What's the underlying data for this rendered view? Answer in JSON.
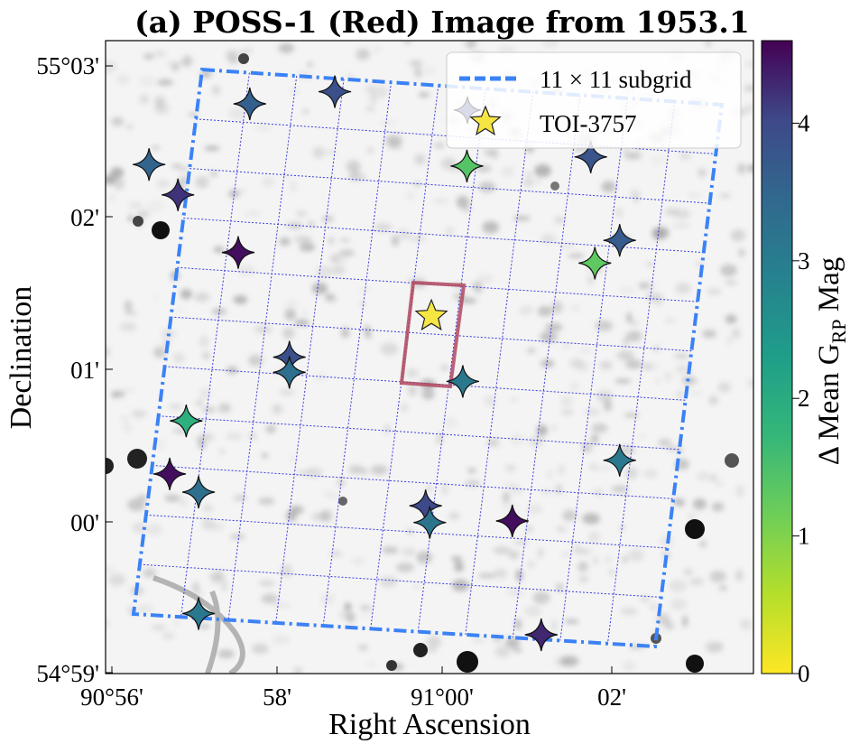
{
  "chart_data": {
    "type": "scatter",
    "title": "(a) POSS-1 (Red) Image from 1953.1",
    "xlabel": "Right Ascension",
    "ylabel": "Declination",
    "x_ticks": [
      "90°56'",
      "58'",
      "91°00'",
      "02'"
    ],
    "y_ticks": [
      "55°03'",
      "02'",
      "01'",
      "00'",
      "54°59'"
    ],
    "background": "grayscale sky image (POSS-1 red plate)",
    "grid": "11 × 11 rotated subgrid, dotted blue lines",
    "legend": {
      "position": "top-right",
      "entries": [
        {
          "label": "11 × 11 subgrid",
          "style": "dashed-line",
          "color": "#3b82f6"
        },
        {
          "label": "TOI-3757",
          "style": "star-marker",
          "color": "#f5e642"
        }
      ]
    },
    "highlight_box": {
      "color": "#b0485f",
      "description": "Gaia DR3 target region around TOI-3757"
    },
    "colorbar": {
      "label_main": "Δ Mean G",
      "label_sub": "RP",
      "label_suffix": " Mag",
      "range": [
        0,
        4.6
      ],
      "ticks": [
        "0",
        "1",
        "2",
        "3",
        "4"
      ],
      "colormap": "viridis (reversed)"
    },
    "target": {
      "name": "TOI-3757",
      "ra_arcmin": 59.87,
      "dec_arcmin": 1.35
    },
    "units": {
      "x": "arcmin offset from 90°56' RA (display)",
      "y": "arcmin offset from 54°59' Dec"
    },
    "points": [
      {
        "ra": 57.67,
        "dec": 2.75,
        "dmag": 3.6
      },
      {
        "ra": 56.45,
        "dec": 2.35,
        "dmag": 3.5
      },
      {
        "ra": 56.8,
        "dec": 2.15,
        "dmag": 4.2
      },
      {
        "ra": 57.53,
        "dec": 1.77,
        "dmag": 4.5
      },
      {
        "ra": 58.7,
        "dec": 2.83,
        "dmag": 3.9
      },
      {
        "ra": 60.3,
        "dec": 2.34,
        "dmag": 1.4
      },
      {
        "ra": 61.8,
        "dec": 2.4,
        "dmag": 3.8
      },
      {
        "ra": 62.15,
        "dec": 1.85,
        "dmag": 3.7
      },
      {
        "ra": 61.85,
        "dec": 1.7,
        "dmag": 1.3
      },
      {
        "ra": 58.15,
        "dec": 1.08,
        "dmag": 3.9
      },
      {
        "ra": 58.15,
        "dec": 0.98,
        "dmag": 3.3
      },
      {
        "ra": 60.25,
        "dec": 0.92,
        "dmag": 3.1
      },
      {
        "ra": 56.9,
        "dec": 0.66,
        "dmag": 1.9
      },
      {
        "ra": 56.7,
        "dec": 0.31,
        "dmag": 4.5
      },
      {
        "ra": 57.05,
        "dec": 0.19,
        "dmag": 3.3
      },
      {
        "ra": 62.15,
        "dec": 0.4,
        "dmag": 3.1
      },
      {
        "ra": 59.8,
        "dec": 0.1,
        "dmag": 4.0
      },
      {
        "ra": 59.85,
        "dec": -0.01,
        "dmag": 3.2
      },
      {
        "ra": 60.85,
        "dec": 0.0,
        "dmag": 4.5
      },
      {
        "ra": 57.05,
        "dec": -0.61,
        "dmag": 3.1
      },
      {
        "ra": 61.2,
        "dec": -0.75,
        "dmag": 4.3
      }
    ]
  }
}
